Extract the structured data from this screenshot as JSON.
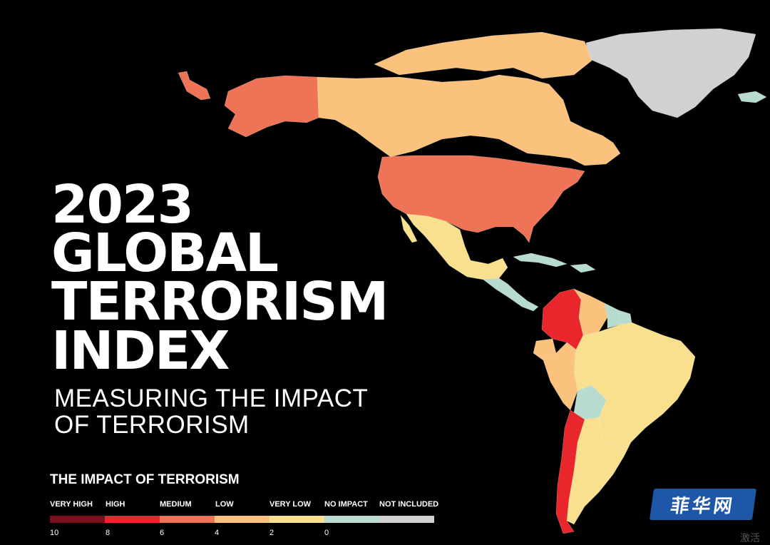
{
  "title_lines": [
    "2023",
    "GLOBAL",
    "TERRORISM",
    "INDEX"
  ],
  "subtitle_lines": [
    "MEASURING THE IMPACT",
    "OF TERRORISM"
  ],
  "legend": {
    "title": "THE IMPACT OF TERRORISM",
    "categories": [
      {
        "label": "VERY HIGH",
        "color": "#7a1019"
      },
      {
        "label": "HIGH",
        "color": "#e8262b"
      },
      {
        "label": "MEDIUM",
        "color": "#ef7356"
      },
      {
        "label": "LOW",
        "color": "#fbc27d"
      },
      {
        "label": "VERY LOW",
        "color": "#f8e08e"
      },
      {
        "label": "NO IMPACT",
        "color": "#b7dccf"
      },
      {
        "label": "NOT INCLUDED",
        "color": "#d1d1d3"
      }
    ],
    "ticks": [
      "10",
      "8",
      "6",
      "4",
      "2",
      "0"
    ]
  },
  "regions": [
    {
      "name": "Greenland",
      "level": "NOT INCLUDED"
    },
    {
      "name": "Alaska",
      "level": "MEDIUM"
    },
    {
      "name": "Canada",
      "level": "LOW"
    },
    {
      "name": "United States",
      "level": "MEDIUM"
    },
    {
      "name": "Mexico",
      "level": "VERY LOW"
    },
    {
      "name": "Central America",
      "level": "NO IMPACT"
    },
    {
      "name": "Colombia",
      "level": "HIGH"
    },
    {
      "name": "Venezuela",
      "level": "LOW"
    },
    {
      "name": "Ecuador",
      "level": "LOW"
    },
    {
      "name": "Peru",
      "level": "LOW"
    },
    {
      "name": "Brazil",
      "level": "VERY LOW"
    },
    {
      "name": "Bolivia",
      "level": "NO IMPACT"
    },
    {
      "name": "Paraguay",
      "level": "VERY LOW"
    },
    {
      "name": "Argentina",
      "level": "VERY LOW"
    },
    {
      "name": "Chile",
      "level": "HIGH"
    }
  ],
  "watermark": "菲华网",
  "corner_text": "激活"
}
